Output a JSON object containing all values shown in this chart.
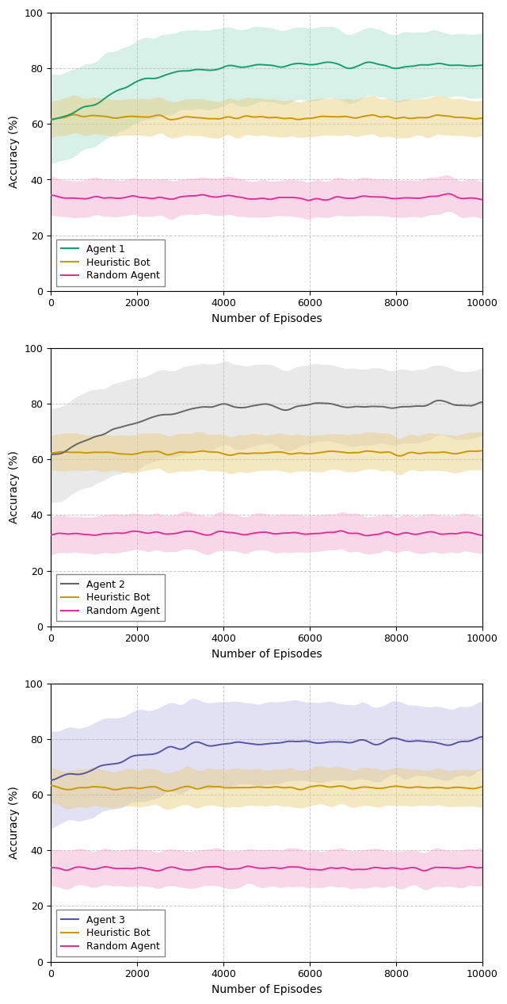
{
  "n_episodes": 10000,
  "n_points": 300,
  "subplot1": {
    "agent_label": "Agent 1",
    "agent_color": "#1a9e6e",
    "agent_fill_color": "#8ed4bf",
    "agent_mean_start": 57,
    "agent_mean_end": 81,
    "agent_std_band": 9
  },
  "subplot2": {
    "agent_label": "Agent 2",
    "agent_color": "#666666",
    "agent_fill_color": "#c0c0c0",
    "agent_mean_start": 57,
    "agent_mean_end": 80,
    "agent_std_band": 10
  },
  "subplot3": {
    "agent_label": "Agent 3",
    "agent_color": "#5555aa",
    "agent_fill_color": "#aaaadd",
    "agent_mean_start": 62,
    "agent_mean_end": 79,
    "agent_std_band": 10
  },
  "heuristic_mean": 62.5,
  "heuristic_std_band": 4.5,
  "heuristic_color": "#cc9900",
  "heuristic_fill_color": "#e8cc77",
  "random_mean": 33.5,
  "random_std_band": 4.5,
  "random_color": "#dd3399",
  "random_fill_color": "#f0aacc",
  "xlabel": "Number of Episodes",
  "ylabel": "Accuracy (%)",
  "ylim": [
    0,
    100
  ],
  "yticks": [
    0,
    20,
    40,
    60,
    80,
    100
  ],
  "xticks": [
    0,
    2000,
    4000,
    6000,
    8000,
    10000
  ],
  "grid_color": "#bbbbbb",
  "background_color": "#ffffff",
  "legend_fontsize": 9,
  "axis_fontsize": 10,
  "tick_fontsize": 9,
  "figsize": [
    6.4,
    12.66
  ],
  "dpi": 100
}
